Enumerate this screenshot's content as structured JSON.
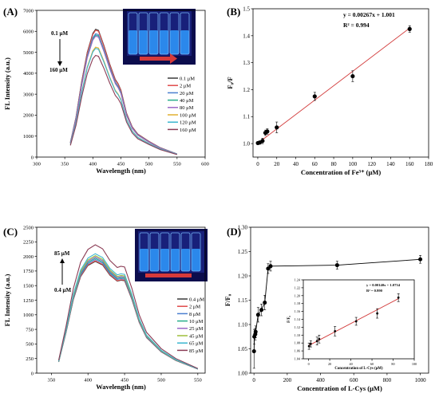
{
  "colors": {
    "fit_line": "#d23b3b",
    "point": "#000000",
    "axis": "#000000",
    "arrow": "#d63a3a",
    "vial_bg": "#16186a",
    "vial_glow": "#3fa9ff"
  },
  "chart_data": [
    {
      "panel": "(A)",
      "type": "line",
      "xlabel": "Wavelength (nm)",
      "ylabel": "FL Intensity (a.u.)",
      "xlim": [
        300,
        600
      ],
      "ylim": [
        0,
        7000
      ],
      "xticks": [
        "300",
        "350",
        "400",
        "450",
        "500",
        "550",
        "600"
      ],
      "yticks": [
        "0",
        "1000",
        "2000",
        "3000",
        "4000",
        "5000",
        "6000",
        "7000"
      ],
      "annotations": [
        "0.1 μM",
        "160 μM"
      ],
      "legend_position": "center-right",
      "x": [
        360,
        370,
        380,
        390,
        400,
        405,
        410,
        420,
        430,
        440,
        445,
        450,
        460,
        470,
        480,
        500,
        520,
        550
      ],
      "series": [
        {
          "name": "0.1 μM",
          "color": "#3a3a3a",
          "scale": 1.0
        },
        {
          "name": "2 μM",
          "color": "#e04a4a",
          "scale": 0.992
        },
        {
          "name": "20 μM",
          "color": "#4a7fd0",
          "scale": 0.965
        },
        {
          "name": "40 μM",
          "color": "#27ad8c",
          "scale": 0.955
        },
        {
          "name": "80 μM",
          "color": "#9a67c7",
          "scale": 0.946
        },
        {
          "name": "100 μM",
          "color": "#e0b030",
          "scale": 0.86
        },
        {
          "name": "120 μM",
          "color": "#3bb6cf",
          "scale": 0.85
        },
        {
          "name": "160 μM",
          "color": "#8b3c55",
          "scale": 0.795
        }
      ],
      "base_values": [
        700,
        1900,
        3600,
        5000,
        5900,
        6100,
        6050,
        5300,
        4450,
        3700,
        3500,
        3200,
        2100,
        1450,
        1100,
        750,
        450,
        150
      ]
    },
    {
      "panel": "(B)",
      "type": "scatter",
      "xlabel": "Concentration of Fe³⁺ (μM)",
      "ylabel": "F₀/F",
      "xlim": [
        -5,
        180
      ],
      "ylim": [
        0.95,
        1.5
      ],
      "xticks": [
        "0",
        "20",
        "40",
        "60",
        "80",
        "100",
        "120",
        "140",
        "160",
        "180"
      ],
      "yticks": [
        "1.0",
        "1.1",
        "1.2",
        "1.3",
        "1.4",
        "1.5"
      ],
      "equation": "y = 0.00267x + 1.001",
      "r2": "R² = 0.994",
      "fit": {
        "slope": 0.00267,
        "intercept": 1.001
      },
      "x": [
        0.1,
        2,
        5,
        8,
        10,
        20,
        60,
        100,
        160
      ],
      "y": [
        1.002,
        1.004,
        1.01,
        1.04,
        1.045,
        1.06,
        1.175,
        1.25,
        1.425
      ],
      "err": [
        0.005,
        0.005,
        0.01,
        0.01,
        0.01,
        0.02,
        0.015,
        0.02,
        0.012
      ]
    },
    {
      "panel": "(C)",
      "type": "line",
      "xlabel": "Wavelength (nm)",
      "ylabel": "FL Intensity (a.u.)",
      "xlim": [
        330,
        560
      ],
      "ylim": [
        0,
        2500
      ],
      "xticks": [
        "350",
        "400",
        "450",
        "500",
        "550"
      ],
      "yticks": [
        "0",
        "250",
        "500",
        "750",
        "1000",
        "1250",
        "1500",
        "1750",
        "2000",
        "2250",
        "2500"
      ],
      "annotations": [
        "85 μM",
        "0.4 μM"
      ],
      "legend_position": "bottom-right",
      "x": [
        360,
        370,
        380,
        390,
        400,
        410,
        420,
        430,
        440,
        445,
        450,
        460,
        470,
        480,
        500,
        520,
        550
      ],
      "series": [
        {
          "name": "0.4 μM",
          "color": "#3a3a3a",
          "scale": 0.87
        },
        {
          "name": "2 μM",
          "color": "#e04a4a",
          "scale": 0.875
        },
        {
          "name": "8 μM",
          "color": "#4a7fd0",
          "scale": 0.885
        },
        {
          "name": "10 μM",
          "color": "#27ad8c",
          "scale": 0.895
        },
        {
          "name": "25 μM",
          "color": "#9a67c7",
          "scale": 0.905
        },
        {
          "name": "45 μM",
          "color": "#9fbf3b",
          "scale": 0.915
        },
        {
          "name": "65 μM",
          "color": "#3bb6cf",
          "scale": 0.93
        },
        {
          "name": "85 μM",
          "color": "#8b3c55",
          "scale": 1.0
        }
      ],
      "base_values": [
        220,
        800,
        1450,
        1900,
        2120,
        2200,
        2130,
        1930,
        1810,
        1830,
        1820,
        1450,
        1000,
        700,
        420,
        250,
        80
      ]
    },
    {
      "panel": "(D)",
      "type": "line",
      "xlabel": "Concentration of L-Cys (μM)",
      "ylabel": "F/F₀",
      "xlim": [
        -20,
        1050
      ],
      "ylim": [
        1.0,
        1.3
      ],
      "xticks": [
        "0",
        "200",
        "400",
        "600",
        "800",
        "1000"
      ],
      "yticks": [
        "1.00",
        "1.05",
        "1.10",
        "1.15",
        "1.20",
        "1.25",
        "1.30"
      ],
      "x": [
        0.4,
        2,
        8,
        10,
        25,
        45,
        65,
        85,
        100,
        500,
        1000
      ],
      "y": [
        1.045,
        1.075,
        1.08,
        1.085,
        1.12,
        1.13,
        1.145,
        1.215,
        1.22,
        1.222,
        1.234
      ],
      "err": [
        0.035,
        0.015,
        0.012,
        0.012,
        0.015,
        0.012,
        0.015,
        0.01,
        0.01,
        0.008,
        0.008
      ],
      "inset": {
        "type": "scatter",
        "xlabel": "Concentration of L-Cys (μM)",
        "ylabel": "F/F₀",
        "xlim": [
          -5,
          100
        ],
        "ylim": [
          1.04,
          1.24
        ],
        "xticks": [
          "0",
          "20",
          "40",
          "60",
          "80",
          "100"
        ],
        "yticks": [
          "1.04",
          "1.06",
          "1.08",
          "1.10",
          "1.12",
          "1.14",
          "1.16",
          "1.18",
          "1.20",
          "1.22",
          "1.24"
        ],
        "equation": "y = 0.00140x + 1.0734",
        "r2": "R² = 0.990",
        "fit": {
          "slope": 0.0014,
          "intercept": 1.0734
        },
        "x": [
          0.4,
          2,
          8,
          10,
          25,
          45,
          65,
          85
        ],
        "y": [
          1.072,
          1.078,
          1.085,
          1.09,
          1.11,
          1.135,
          1.155,
          1.195
        ],
        "err": [
          0.008,
          0.008,
          0.01,
          0.01,
          0.012,
          0.01,
          0.012,
          0.01
        ]
      }
    }
  ]
}
